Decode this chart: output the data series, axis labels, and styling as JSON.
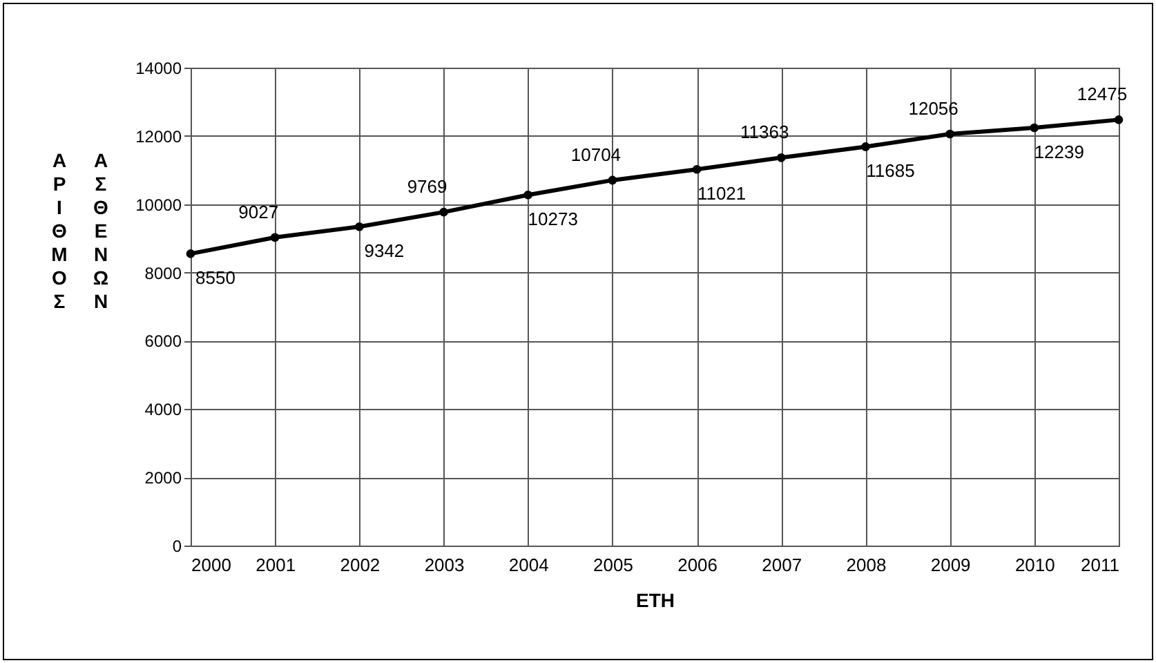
{
  "chart_data": {
    "type": "line",
    "xlabel": "ΕΤΗ",
    "ylabel": "ΑΡΙΘΜΟΣ ΑΣΘΕΝΩΝ",
    "x": [
      2000,
      2001,
      2002,
      2003,
      2004,
      2005,
      2006,
      2007,
      2008,
      2009,
      2010,
      2011
    ],
    "series": [
      {
        "color": "#000000",
        "values": [
          8550,
          9027,
          9342,
          9769,
          10273,
          10704,
          11021,
          11363,
          11685,
          12056,
          12239,
          12475
        ]
      }
    ],
    "xlim": [
      2000,
      2011
    ],
    "xticks": [
      2000,
      2001,
      2002,
      2003,
      2004,
      2005,
      2006,
      2007,
      2008,
      2009,
      2010,
      2011
    ],
    "ylim": [
      0,
      14000
    ],
    "yticks": [
      0,
      2000,
      4000,
      6000,
      8000,
      10000,
      12000,
      14000
    ],
    "grid": true,
    "marker": "circle",
    "line_style": "solid",
    "data_labels": true
  }
}
